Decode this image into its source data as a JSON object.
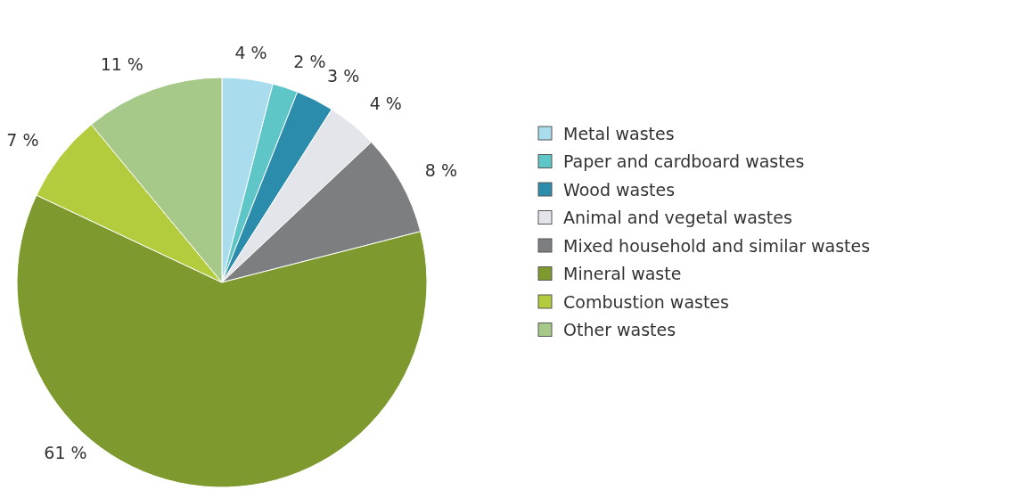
{
  "chart_data": {
    "type": "pie",
    "categories": [
      "Metal wastes",
      "Paper and cardboard wastes",
      "Wood wastes",
      "Animal and vegetal wastes",
      "Mixed household and similar wastes",
      "Mineral waste",
      "Combustion wastes",
      "Other wastes"
    ],
    "values": [
      4,
      2,
      3,
      4,
      8,
      61,
      7,
      11
    ],
    "colors": [
      "#a9dcec",
      "#5ec6c6",
      "#2c8cab",
      "#e4e5ea",
      "#7d7e80",
      "#7e9a2e",
      "#b3cc3d",
      "#a6c98a"
    ],
    "value_labels": [
      "4 %",
      "2 %",
      "3 %",
      "4 %",
      "8 %",
      "61 %",
      "7 %",
      "11 %"
    ],
    "legend": "right"
  }
}
